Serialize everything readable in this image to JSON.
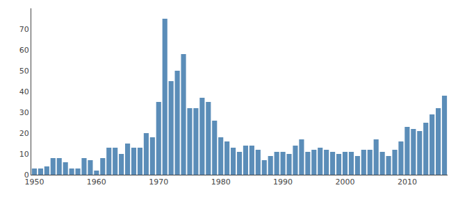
{
  "chart_data": {
    "type": "bar",
    "x": [
      1950,
      1951,
      1952,
      1953,
      1954,
      1955,
      1956,
      1957,
      1958,
      1959,
      1960,
      1961,
      1962,
      1963,
      1964,
      1965,
      1966,
      1967,
      1968,
      1969,
      1970,
      1971,
      1972,
      1973,
      1974,
      1975,
      1976,
      1977,
      1978,
      1979,
      1980,
      1981,
      1982,
      1983,
      1984,
      1985,
      1986,
      1987,
      1988,
      1989,
      1990,
      1991,
      1992,
      1993,
      1994,
      1995,
      1996,
      1997,
      1998,
      1999,
      2000,
      2001,
      2002,
      2003,
      2004,
      2005,
      2006,
      2007,
      2008,
      2009,
      2010,
      2011,
      2012,
      2013,
      2014,
      2015,
      2016
    ],
    "values": [
      3,
      3,
      4,
      8,
      8,
      6,
      3,
      3,
      8,
      7,
      2,
      8,
      13,
      13,
      10,
      15,
      13,
      13,
      20,
      18,
      35,
      75,
      45,
      50,
      58,
      32,
      32,
      37,
      35,
      26,
      18,
      16,
      13,
      11,
      14,
      14,
      12,
      7,
      9,
      11,
      11,
      10,
      14,
      17,
      11,
      12,
      13,
      12,
      11,
      10,
      11,
      11,
      9,
      12,
      12,
      17,
      11,
      9,
      12,
      16,
      23,
      22,
      21,
      25,
      29,
      32,
      38
    ],
    "color": "#5b8db8",
    "xlim": [
      1949.5,
      2016.5
    ],
    "xticks": [
      1950,
      1960,
      1970,
      1980,
      1990,
      2000,
      2010
    ],
    "ylim": [
      0,
      80
    ],
    "yticks": [
      0,
      10,
      20,
      30,
      40,
      50,
      60,
      70
    ],
    "grid": false
  }
}
